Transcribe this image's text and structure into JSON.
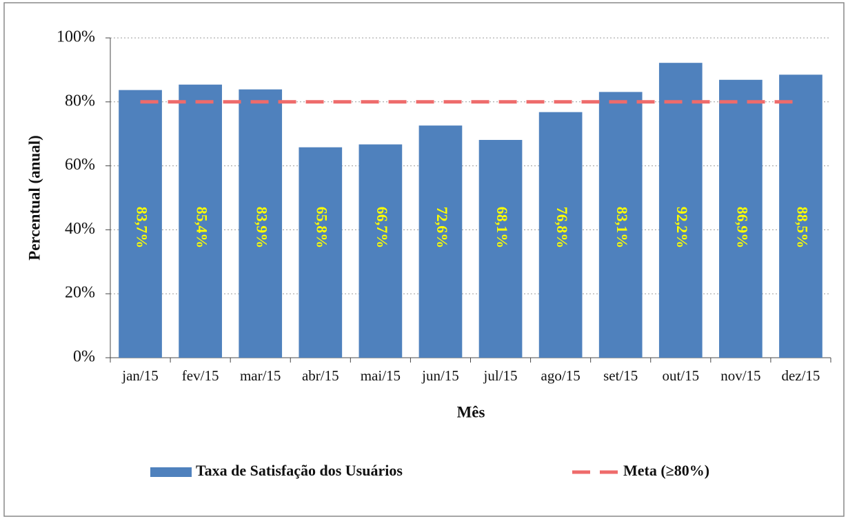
{
  "chart_data": {
    "type": "bar",
    "y_label": "Percentual (anual)",
    "x_label": "Mês",
    "categories": [
      "jan/15",
      "fev/15",
      "mar/15",
      "abr/15",
      "mai/15",
      "jun/15",
      "jul/15",
      "ago/15",
      "set/15",
      "out/15",
      "nov/15",
      "dez/15"
    ],
    "series": [
      {
        "name": "Taxa de Satisfação dos Usuários",
        "type": "bar",
        "color": "#4f81bd",
        "values": [
          83.7,
          85.4,
          83.9,
          65.8,
          66.7,
          72.6,
          68.1,
          76.8,
          83.1,
          92.2,
          86.9,
          88.5
        ],
        "value_labels": [
          "83,7%",
          "85,4%",
          "83,9%",
          "65,8%",
          "66,7%",
          "72,6%",
          "68,1%",
          "76,8%",
          "83,1%",
          "92,2%",
          "86,9%",
          "88,5%"
        ],
        "label_color": "#ffff00"
      },
      {
        "name": "Meta (≥80%)",
        "type": "line",
        "color": "#ee6b6b",
        "dashed": true,
        "values": [
          80,
          80,
          80,
          80,
          80,
          80,
          80,
          80,
          80,
          80,
          80,
          80
        ]
      }
    ],
    "ylim": [
      0,
      100
    ],
    "yticks": [
      {
        "value": 0,
        "label": "0%"
      },
      {
        "value": 20,
        "label": "20%"
      },
      {
        "value": 40,
        "label": "40%"
      },
      {
        "value": 60,
        "label": "60%"
      },
      {
        "value": 80,
        "label": "80%"
      },
      {
        "value": 100,
        "label": "100%"
      }
    ],
    "grid": true,
    "legend": "bottom"
  }
}
